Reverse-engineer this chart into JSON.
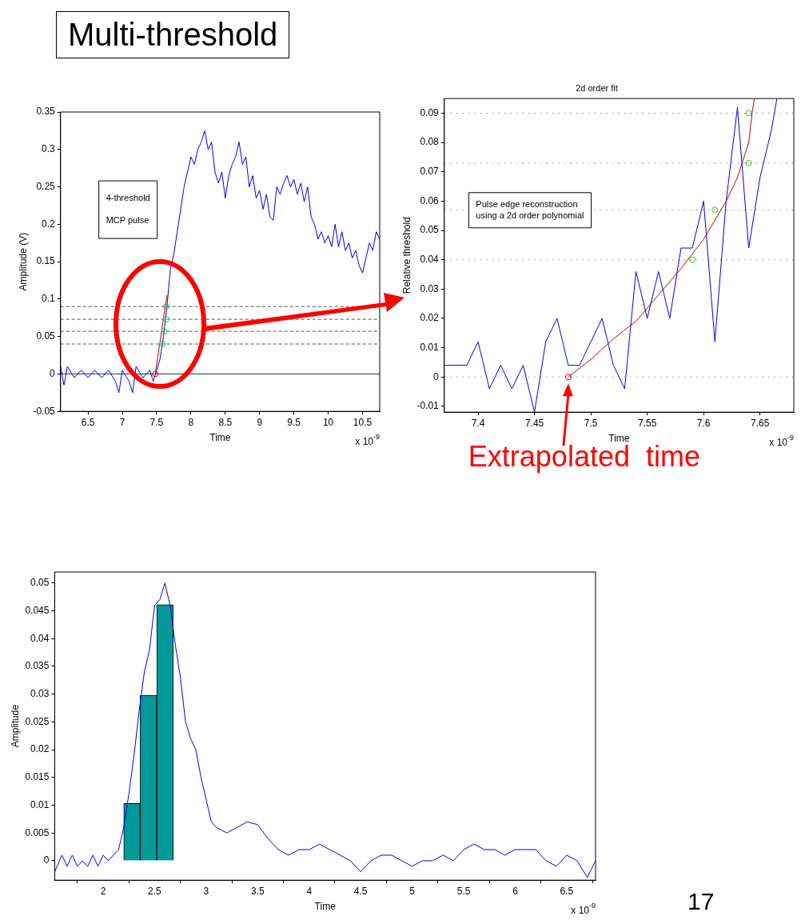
{
  "chart_data": [
    {
      "type": "line",
      "title": "Multi-threshold",
      "xlabel": "Time",
      "ylabel": "Amplitude (V)",
      "annotations": [
        "4-threshold",
        "MCP pulse",
        "x 10$^{-9}$"
      ],
      "xlim": [
        6.1,
        10.75
      ],
      "xticks": [
        6.5,
        7,
        7.5,
        8,
        8.5,
        9,
        9.5,
        10,
        10.5
      ],
      "ylim": [
        -0.05,
        0.35
      ],
      "yticks": [
        -0.05,
        0,
        0.05,
        0.1,
        0.15,
        0.2,
        0.25,
        0.3,
        0.35
      ],
      "grid": false,
      "legend": false,
      "ref_lines": [
        {
          "axis": "y",
          "value": 0,
          "color": "#333333",
          "line_style": "solid"
        },
        {
          "axis": "y",
          "value": 0.04,
          "color": "#555555",
          "line_style": "dashed"
        },
        {
          "axis": "y",
          "value": 0.057,
          "color": "#555555",
          "line_style": "dashed"
        },
        {
          "axis": "y",
          "value": 0.073,
          "color": "#555555",
          "line_style": "dashed"
        },
        {
          "axis": "y",
          "value": 0.09,
          "color": "#555555",
          "line_style": "dashed"
        }
      ],
      "series": [
        {
          "type": "line",
          "color": "#0000ee",
          "x": [
            6.1,
            6.15,
            6.2,
            6.3,
            6.4,
            6.5,
            6.6,
            6.7,
            6.8,
            6.9,
            6.95,
            7.0,
            7.1,
            7.15,
            7.2,
            7.3,
            7.4,
            7.45,
            7.5,
            7.55,
            7.6,
            7.65,
            7.7,
            7.75,
            7.8,
            7.85,
            7.9,
            7.95,
            8.0,
            8.05,
            8.1,
            8.15,
            8.2,
            8.25,
            8.3,
            8.35,
            8.4,
            8.45,
            8.5,
            8.55,
            8.6,
            8.65,
            8.7,
            8.75,
            8.8,
            8.85,
            8.9,
            8.95,
            9.0,
            9.05,
            9.1,
            9.15,
            9.2,
            9.25,
            9.3,
            9.35,
            9.4,
            9.45,
            9.5,
            9.55,
            9.6,
            9.65,
            9.7,
            9.75,
            9.8,
            9.85,
            9.9,
            9.95,
            10.0,
            10.05,
            10.1,
            10.15,
            10.2,
            10.25,
            10.3,
            10.35,
            10.4,
            10.45,
            10.5,
            10.55,
            10.6,
            10.65,
            10.7,
            10.75
          ],
          "values": [
            0.01,
            -0.015,
            0.01,
            -0.005,
            0.005,
            -0.005,
            0.005,
            -0.005,
            0.005,
            -0.01,
            -0.025,
            0.005,
            -0.01,
            -0.025,
            0.01,
            -0.005,
            0.005,
            -0.01,
            0.005,
            0.02,
            0.05,
            0.09,
            0.14,
            0.16,
            0.19,
            0.22,
            0.25,
            0.27,
            0.29,
            0.28,
            0.3,
            0.31,
            0.325,
            0.3,
            0.31,
            0.27,
            0.255,
            0.27,
            0.235,
            0.265,
            0.28,
            0.29,
            0.31,
            0.28,
            0.29,
            0.25,
            0.265,
            0.235,
            0.245,
            0.22,
            0.24,
            0.21,
            0.205,
            0.25,
            0.24,
            0.255,
            0.265,
            0.25,
            0.26,
            0.24,
            0.255,
            0.23,
            0.25,
            0.21,
            0.2,
            0.18,
            0.19,
            0.175,
            0.185,
            0.17,
            0.2,
            0.17,
            0.19,
            0.165,
            0.175,
            0.155,
            0.165,
            0.145,
            0.135,
            0.155,
            0.175,
            0.165,
            0.19,
            0.18
          ]
        },
        {
          "type": "line",
          "color": "#cc0000",
          "x": [
            7.48,
            7.65
          ],
          "values": [
            0,
            0.105
          ]
        },
        {
          "type": "scatter",
          "marker": "circle",
          "color": "#22cc22",
          "x": [
            7.59,
            7.61,
            7.64,
            7.64
          ],
          "values": [
            0.04,
            0.057,
            0.073,
            0.09
          ]
        },
        {
          "type": "scatter",
          "marker": "circle",
          "color": "#cc0000",
          "x": [
            7.48
          ],
          "values": [
            0
          ]
        }
      ]
    },
    {
      "type": "line",
      "title": "2d order fit",
      "xlabel": "Time",
      "ylabel": "Relative threshold",
      "annotations": [
        "Pulse edge reconstruction using a 2d order polynomial",
        {
          "text": "Extrapolated  time",
          "x": 7.48,
          "y": 0
        },
        "x 10$^{-9}$"
      ],
      "xlim": [
        7.37,
        7.68
      ],
      "xticks": [
        7.4,
        7.45,
        7.5,
        7.55,
        7.6,
        7.65
      ],
      "ylim": [
        -0.012,
        0.095
      ],
      "yticks": [
        -0.01,
        0,
        0.01,
        0.02,
        0.03,
        0.04,
        0.05,
        0.06,
        0.07,
        0.08,
        0.09
      ],
      "grid": false,
      "legend": false,
      "ref_lines": [
        {
          "axis": "y",
          "value": 0,
          "color": "#888888",
          "line_style": "dotted"
        },
        {
          "axis": "y",
          "value": 0.04,
          "color": "#888888",
          "line_style": "dotted"
        },
        {
          "axis": "y",
          "value": 0.057,
          "color": "#888888",
          "line_style": "dotted"
        },
        {
          "axis": "y",
          "value": 0.073,
          "color": "#888888",
          "line_style": "dotted"
        },
        {
          "axis": "y",
          "value": 0.09,
          "color": "#888888",
          "line_style": "dotted"
        }
      ],
      "series": [
        {
          "type": "line",
          "color": "#0000ee",
          "x": [
            7.37,
            7.38,
            7.39,
            7.4,
            7.41,
            7.42,
            7.43,
            7.44,
            7.45,
            7.46,
            7.47,
            7.48,
            7.49,
            7.5,
            7.51,
            7.52,
            7.53,
            7.54,
            7.55,
            7.56,
            7.57,
            7.58,
            7.59,
            7.6,
            7.61,
            7.62,
            7.63,
            7.64,
            7.65,
            7.66,
            7.665
          ],
          "values": [
            0.004,
            0.004,
            0.004,
            0.012,
            -0.004,
            0.004,
            -0.004,
            0.004,
            -0.012,
            0.012,
            0.02,
            0.004,
            0.004,
            0.012,
            0.02,
            0.004,
            -0.004,
            0.036,
            0.02,
            0.036,
            0.02,
            0.044,
            0.044,
            0.06,
            0.012,
            0.06,
            0.092,
            0.044,
            0.068,
            0.084,
            0.095
          ]
        },
        {
          "type": "line",
          "color": "#cc0000",
          "x": [
            7.48,
            7.5,
            7.52,
            7.54,
            7.56,
            7.58,
            7.6,
            7.62,
            7.63,
            7.64,
            7.643,
            7.645
          ],
          "values": [
            0,
            0.006,
            0.013,
            0.019,
            0.028,
            0.037,
            0.047,
            0.06,
            0.068,
            0.08,
            0.09,
            0.095
          ]
        },
        {
          "type": "scatter",
          "marker": "circle",
          "color": "#22cc22",
          "x": [
            7.59,
            7.61,
            7.64,
            7.64
          ],
          "values": [
            0.04,
            0.057,
            0.073,
            0.09
          ]
        },
        {
          "type": "scatter",
          "marker": "circle",
          "color": "#cc0000",
          "x": [
            7.48
          ],
          "values": [
            0
          ]
        }
      ]
    },
    {
      "type": "line",
      "xlabel": "Time",
      "ylabel": "Amplitude",
      "annotations": [
        "x 10$^{-9}$",
        "17"
      ],
      "xlim": [
        1.53,
        6.78
      ],
      "xticks": [
        2,
        2.5,
        3,
        3.5,
        4,
        4.5,
        5,
        5.5,
        6,
        6.5
      ],
      "ylim": [
        -0.0035,
        0.052
      ],
      "yticks": [
        0,
        0.005,
        0.01,
        0.015,
        0.02,
        0.025,
        0.03,
        0.035,
        0.04,
        0.045,
        0.05
      ],
      "grid": false,
      "legend": false,
      "series": [
        {
          "type": "line",
          "color": "#0000ee",
          "x": [
            1.53,
            1.6,
            1.65,
            1.7,
            1.75,
            1.8,
            1.85,
            1.9,
            1.95,
            2.0,
            2.05,
            2.1,
            2.15,
            2.2,
            2.25,
            2.3,
            2.35,
            2.4,
            2.45,
            2.5,
            2.55,
            2.6,
            2.65,
            2.7,
            2.75,
            2.8,
            2.85,
            2.9,
            2.95,
            3.0,
            3.05,
            3.1,
            3.2,
            3.3,
            3.4,
            3.5,
            3.6,
            3.7,
            3.8,
            3.9,
            4.0,
            4.1,
            4.2,
            4.3,
            4.4,
            4.5,
            4.6,
            4.7,
            4.8,
            4.9,
            5.0,
            5.1,
            5.2,
            5.3,
            5.4,
            5.5,
            5.6,
            5.7,
            5.8,
            5.9,
            6.0,
            6.1,
            6.2,
            6.3,
            6.4,
            6.5,
            6.6,
            6.7,
            6.78
          ],
          "values": [
            -0.002,
            0.001,
            -0.001,
            0.001,
            -0.001,
            0.0,
            -0.001,
            0.001,
            -0.001,
            0.001,
            0.0,
            0.001,
            0.002,
            0.006,
            0.012,
            0.019,
            0.027,
            0.034,
            0.038,
            0.046,
            0.047,
            0.05,
            0.046,
            0.039,
            0.033,
            0.025,
            0.022,
            0.02,
            0.015,
            0.011,
            0.007,
            0.006,
            0.005,
            0.006,
            0.007,
            0.0065,
            0.004,
            0.002,
            0.001,
            0.002,
            0.002,
            0.003,
            0.002,
            0.001,
            0.0,
            -0.002,
            0.0,
            0.001,
            0.001,
            0.0,
            -0.001,
            0.0,
            0.0,
            0.001,
            0.0,
            0.002,
            0.003,
            0.002,
            0.002,
            0.001,
            0.002,
            0.002,
            0.002,
            0.0,
            -0.001,
            0.001,
            0.0,
            -0.003,
            0.0
          ]
        },
        {
          "type": "histogram",
          "color": "#009999",
          "bins": [
            2.2,
            2.36,
            2.52,
            2.68
          ],
          "values": [
            0.0103,
            0.0298,
            0.0461
          ]
        }
      ]
    }
  ]
}
